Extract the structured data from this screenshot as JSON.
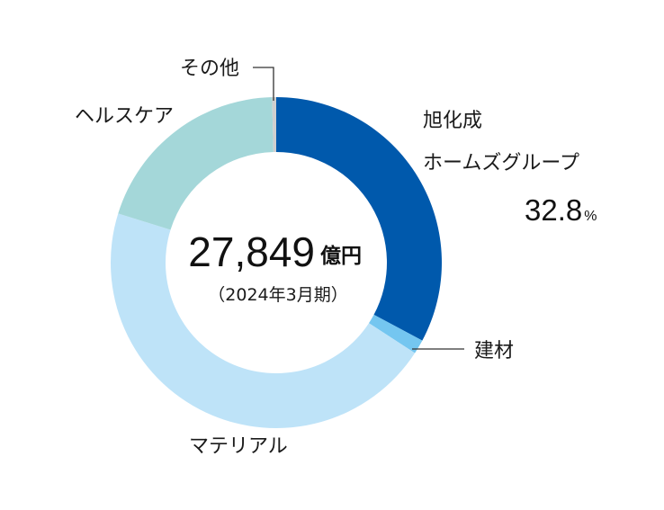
{
  "chart_data": {
    "type": "pie",
    "donut": true,
    "title": "",
    "slices": [
      {
        "label_lines": [
          "旭化成",
          "ホームズグループ"
        ],
        "value": 32.8,
        "value_label": "32.8",
        "value_unit": "%",
        "color": "#0059AC"
      },
      {
        "label_lines": [
          "建材"
        ],
        "value": 1.4,
        "color": "#74C6F0"
      },
      {
        "label_lines": [
          "マテリアル"
        ],
        "value": 45.6,
        "color": "#BEE3F8"
      },
      {
        "label_lines": [
          "ヘルスケア"
        ],
        "value": 19.8,
        "color": "#A4D7D9"
      },
      {
        "label_lines": [
          "その他"
        ],
        "value": 0.4,
        "color": "#CFCFCF"
      }
    ],
    "center": {
      "total": "27,849",
      "unit": "億円",
      "period": "（2024年3月期）"
    }
  }
}
